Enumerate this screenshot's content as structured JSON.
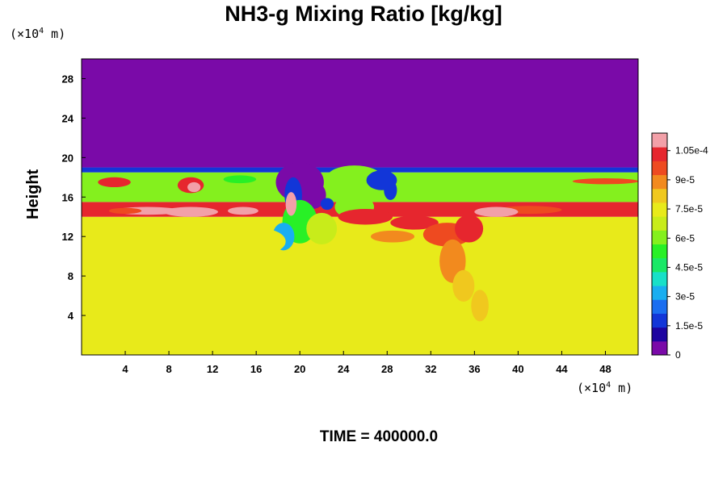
{
  "title": "NH3-g Mixing Ratio [kg/kg]",
  "y_unit": "(×10",
  "x_unit": "(×10",
  "unit_exp": "4",
  "unit_m": " m)",
  "y_axis_label": "Height",
  "time_label": "TIME = 400000.0",
  "chart_data": {
    "type": "heatmap",
    "title": "NH3-g Mixing Ratio [kg/kg]",
    "ylabel": "Height",
    "xlabel": "",
    "x_unit": "×10^4 m",
    "y_unit": "×10^4 m",
    "xlim": [
      0,
      51
    ],
    "ylim": [
      0,
      30
    ],
    "x_ticks": [
      4,
      8,
      12,
      16,
      20,
      24,
      28,
      32,
      36,
      40,
      44,
      48
    ],
    "y_ticks": [
      4,
      8,
      12,
      16,
      20,
      24,
      28
    ],
    "colorbar": {
      "range": [
        0,
        0.000114
      ],
      "tick_values": [
        0,
        1.5e-05,
        3e-05,
        4.5e-05,
        6e-05,
        7.5e-05,
        9e-05,
        0.000105
      ],
      "tick_labels": [
        "0",
        "1.5e-5",
        "3e-5",
        "4.5e-5",
        "6e-5",
        "7.5e-5",
        "9e-5",
        "1.05e-4"
      ]
    },
    "field_description": [
      {
        "region": "y 19-30",
        "value": 0
      },
      {
        "region": "y 18.5-19",
        "value": 2e-05
      },
      {
        "region": "y 15.5-18.5",
        "value": 6.2e-05
      },
      {
        "region": "y 14-15.5",
        "value": 0.0001
      },
      {
        "region": "y 0-14",
        "value": 7.7e-05
      }
    ],
    "features": [
      {
        "kind": "dry intrusion",
        "x": [
          18,
          23
        ],
        "y": [
          14.5,
          19
        ],
        "value": 0
      },
      {
        "kind": "high-ratio plume",
        "x": [
          30,
          38
        ],
        "y": [
          6,
          14.5
        ],
        "value": 0.0001
      }
    ],
    "colors": [
      "#7a0aa8",
      "#1d04a0",
      "#1236d8",
      "#1a6ef0",
      "#19aef0",
      "#18e0c8",
      "#19e866",
      "#28f026",
      "#84f01e",
      "#c8ec1a",
      "#e8ea1a",
      "#f0c81e",
      "#f28a1e",
      "#ee4a20",
      "#e6262e",
      "#f2a0a8"
    ]
  }
}
